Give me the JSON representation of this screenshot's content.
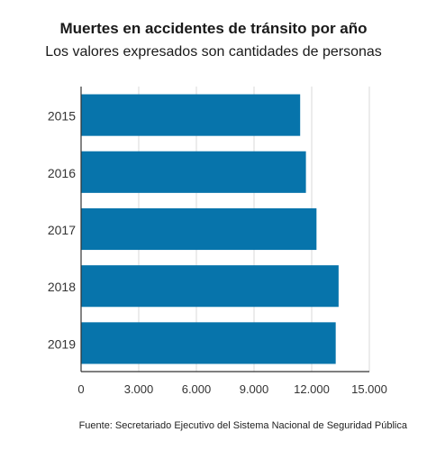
{
  "chart_data": {
    "type": "bar",
    "orientation": "horizontal",
    "title": "Muertes en accidentes de tránsito por año",
    "subtitle": "Los valores expresados son cantidades de personas",
    "categories": [
      "2015",
      "2016",
      "2017",
      "2018",
      "2019"
    ],
    "values": [
      11400,
      11700,
      12250,
      13400,
      13250
    ],
    "xlim": [
      0,
      15000
    ],
    "xticks": [
      0,
      3000,
      6000,
      9000,
      12000,
      15000
    ],
    "xtick_labels": [
      "0",
      "3.000",
      "6.000",
      "9.000",
      "12.000",
      "15.000"
    ],
    "xlabel": "",
    "ylabel": "",
    "grid": "vertical",
    "legend": "none",
    "bar_color": "#0774ab",
    "source": "Fuente: Secretariado Ejecutivo del Sistema Nacional de Seguridad Pública"
  }
}
